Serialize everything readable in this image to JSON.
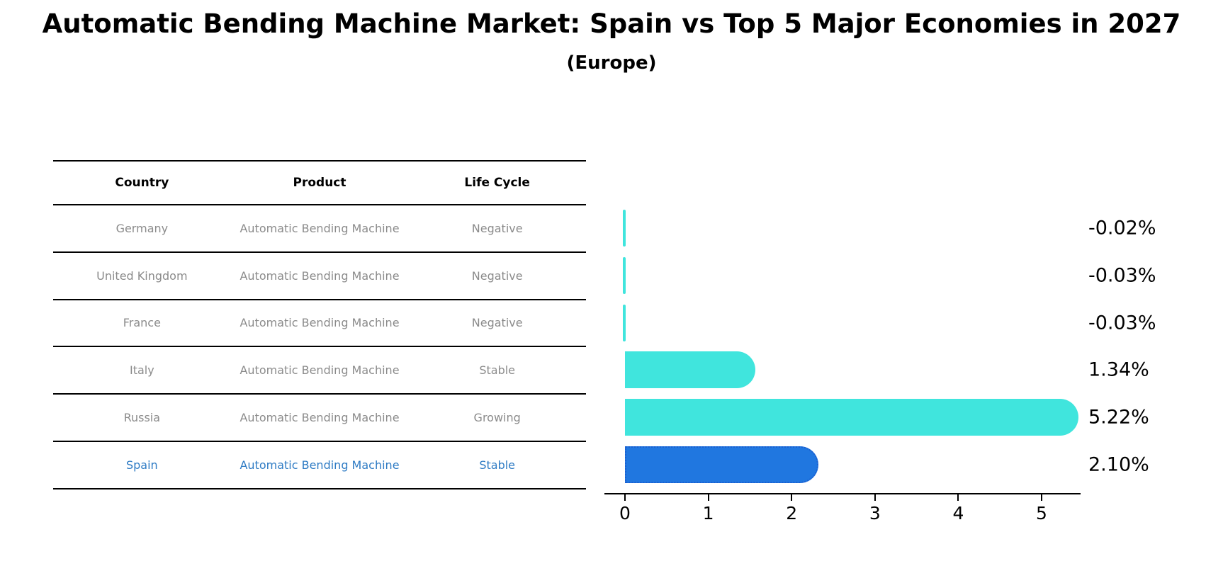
{
  "title": "Automatic Bending Machine Market: Spain vs Top 5 Major Economies in 2027",
  "subtitle": "(Europe)",
  "table": {
    "headers": [
      "Country",
      "Product",
      "Life Cycle"
    ],
    "rows": [
      {
        "country": "Germany",
        "product": "Automatic Bending Machine",
        "life_cycle": "Negative",
        "highlight": false
      },
      {
        "country": "United Kingdom",
        "product": "Automatic Bending Machine",
        "life_cycle": "Negative",
        "highlight": false
      },
      {
        "country": "France",
        "product": "Automatic Bending Machine",
        "life_cycle": "Negative",
        "highlight": false
      },
      {
        "country": "Italy",
        "product": "Automatic Bending Machine",
        "life_cycle": "Stable",
        "highlight": false
      },
      {
        "country": "Russia",
        "product": "Automatic Bending Machine",
        "life_cycle": "Growing",
        "highlight": false
      },
      {
        "country": "Spain",
        "product": "Automatic Bending Machine",
        "life_cycle": "Stable",
        "highlight": true
      }
    ]
  },
  "chart_data": {
    "type": "bar",
    "orientation": "horizontal",
    "title": "Automatic Bending Machine Market: Spain vs Top 5 Major Economies in 2027 (Europe)",
    "categories": [
      "Germany",
      "United Kingdom",
      "France",
      "Italy",
      "Russia",
      "Spain"
    ],
    "values": [
      -0.02,
      -0.03,
      -0.03,
      1.34,
      5.22,
      2.1
    ],
    "value_labels": [
      "-0.02%",
      "-0.03%",
      "-0.03%",
      "1.34%",
      "5.22%",
      "2.10%"
    ],
    "unit": "%",
    "xticks": [
      "0",
      "1",
      "2",
      "3",
      "4",
      "5"
    ],
    "xlim": [
      -0.25,
      5.47
    ],
    "grid": false,
    "legend": false,
    "bar_color": "#40e5dd",
    "highlight_index": 5,
    "highlight_bar_color": "#2077e0",
    "highlight_border_color": "#1b5fd0"
  },
  "colors": {
    "table_text_muted": "#8b8b8b",
    "table_text_highlight": "#2e7bc4",
    "axis": "#000000",
    "background": "#ffffff"
  }
}
